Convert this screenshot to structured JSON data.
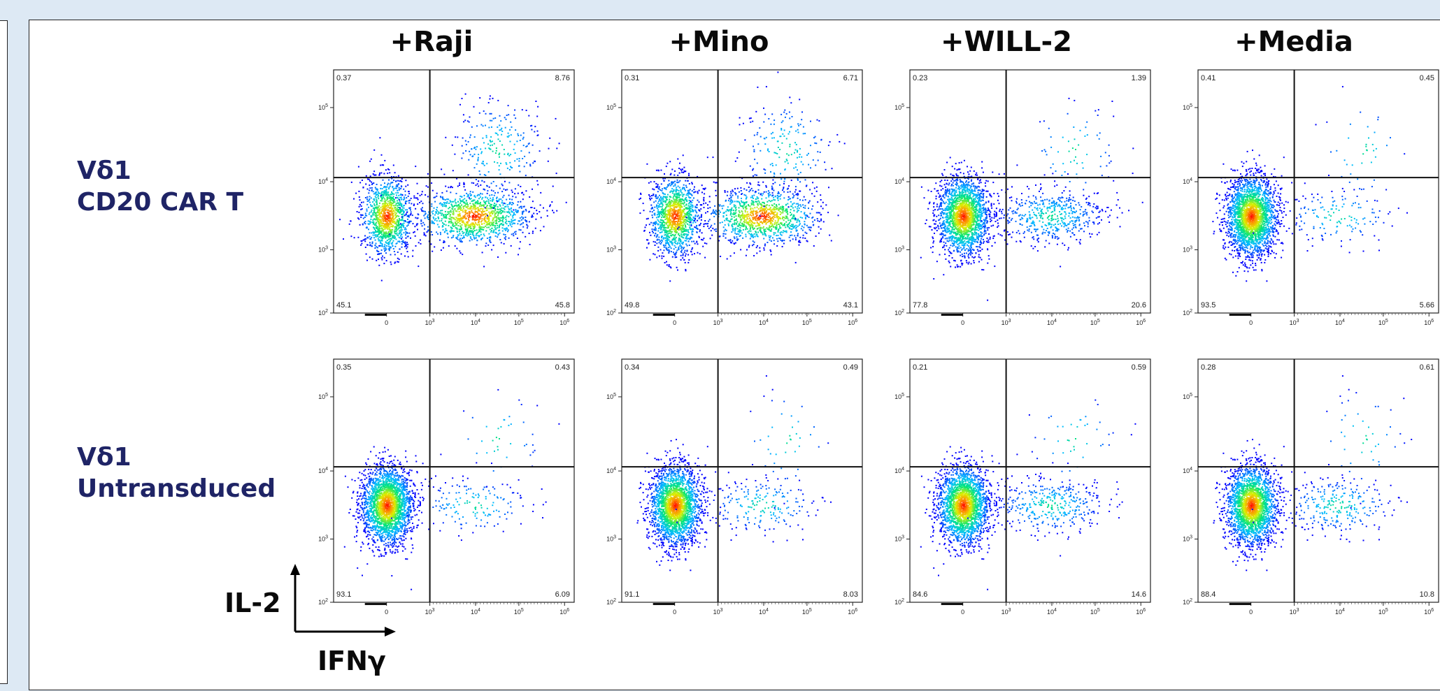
{
  "columns": [
    "+Raji",
    "+Mino",
    "+WILL-2",
    "+Media"
  ],
  "rows": [
    {
      "label_line1": "Vδ1",
      "label_line2": "CD20 CAR T"
    },
    {
      "label_line1": "Vδ1",
      "label_line2": "Untransduced"
    }
  ],
  "axis": {
    "y_label": "IL-2",
    "x_label": "IFNγ"
  },
  "chart_data": [
    {
      "type": "scatter",
      "row": "Vδ1 CD20 CAR T",
      "column": "+Raji",
      "xscale": "log",
      "yscale": "log",
      "xlim": [
        0,
        1000000
      ],
      "ylim": [
        100,
        500000
      ],
      "x_ticks": [
        "0",
        "10^3",
        "10^4",
        "10^5",
        "10^6"
      ],
      "y_ticks": [
        "10^2",
        "10^3",
        "10^4",
        "10^5"
      ],
      "quadrants": {
        "upper_left": "0.37",
        "upper_right": "8.76",
        "lower_left": "45.1",
        "lower_right": "45.8"
      }
    },
    {
      "type": "scatter",
      "row": "Vδ1 CD20 CAR T",
      "column": "+Mino",
      "xscale": "log",
      "yscale": "log",
      "xlim": [
        0,
        1000000
      ],
      "ylim": [
        100,
        500000
      ],
      "x_ticks": [
        "0",
        "10^3",
        "10^4",
        "10^5",
        "10^6"
      ],
      "y_ticks": [
        "10^2",
        "10^3",
        "10^4",
        "10^5"
      ],
      "quadrants": {
        "upper_left": "0.31",
        "upper_right": "6.71",
        "lower_left": "49.8",
        "lower_right": "43.1"
      }
    },
    {
      "type": "scatter",
      "row": "Vδ1 CD20 CAR T",
      "column": "+WILL-2",
      "xscale": "log",
      "yscale": "log",
      "xlim": [
        0,
        1000000
      ],
      "ylim": [
        100,
        500000
      ],
      "x_ticks": [
        "0",
        "10^3",
        "10^4",
        "10^5",
        "10^6"
      ],
      "y_ticks": [
        "10^2",
        "10^3",
        "10^4",
        "10^5"
      ],
      "quadrants": {
        "upper_left": "0.23",
        "upper_right": "1.39",
        "lower_left": "77.8",
        "lower_right": "20.6"
      }
    },
    {
      "type": "scatter",
      "row": "Vδ1 CD20 CAR T",
      "column": "+Media",
      "xscale": "log",
      "yscale": "log",
      "xlim": [
        0,
        1000000
      ],
      "ylim": [
        100,
        500000
      ],
      "x_ticks": [
        "0",
        "10^3",
        "10^4",
        "10^5",
        "10^6"
      ],
      "y_ticks": [
        "10^2",
        "10^3",
        "10^4",
        "10^5"
      ],
      "quadrants": {
        "upper_left": "0.41",
        "upper_right": "0.45",
        "lower_left": "93.5",
        "lower_right": "5.66"
      }
    },
    {
      "type": "scatter",
      "row": "Vδ1 Untransduced",
      "column": "+Raji",
      "xscale": "log",
      "yscale": "log",
      "xlim": [
        0,
        1000000
      ],
      "ylim": [
        100,
        500000
      ],
      "x_ticks": [
        "0",
        "10^3",
        "10^4",
        "10^5",
        "10^6"
      ],
      "y_ticks": [
        "10^2",
        "10^3",
        "10^4",
        "10^5"
      ],
      "quadrants": {
        "upper_left": "0.35",
        "upper_right": "0.43",
        "lower_left": "93.1",
        "lower_right": "6.09"
      }
    },
    {
      "type": "scatter",
      "row": "Vδ1 Untransduced",
      "column": "+Mino",
      "xscale": "log",
      "yscale": "log",
      "xlim": [
        0,
        1000000
      ],
      "ylim": [
        100,
        500000
      ],
      "x_ticks": [
        "0",
        "10^3",
        "10^4",
        "10^5",
        "10^6"
      ],
      "y_ticks": [
        "10^2",
        "10^3",
        "10^4",
        "10^5"
      ],
      "quadrants": {
        "upper_left": "0.34",
        "upper_right": "0.49",
        "lower_left": "91.1",
        "lower_right": "8.03"
      }
    },
    {
      "type": "scatter",
      "row": "Vδ1 Untransduced",
      "column": "+WILL-2",
      "xscale": "log",
      "yscale": "log",
      "xlim": [
        0,
        1000000
      ],
      "ylim": [
        100,
        500000
      ],
      "x_ticks": [
        "0",
        "10^3",
        "10^4",
        "10^5",
        "10^6"
      ],
      "y_ticks": [
        "10^2",
        "10^3",
        "10^4",
        "10^5"
      ],
      "quadrants": {
        "upper_left": "0.21",
        "upper_right": "0.59",
        "lower_left": "84.6",
        "lower_right": "14.6"
      }
    },
    {
      "type": "scatter",
      "row": "Vδ1 Untransduced",
      "column": "+Media",
      "xscale": "log",
      "yscale": "log",
      "xlim": [
        0,
        1000000
      ],
      "ylim": [
        100,
        500000
      ],
      "x_ticks": [
        "0",
        "10^3",
        "10^4",
        "10^5",
        "10^6"
      ],
      "y_ticks": [
        "10^2",
        "10^3",
        "10^4",
        "10^5"
      ],
      "quadrants": {
        "upper_left": "0.28",
        "upper_right": "0.61",
        "lower_left": "88.4",
        "lower_right": "10.8"
      }
    }
  ]
}
